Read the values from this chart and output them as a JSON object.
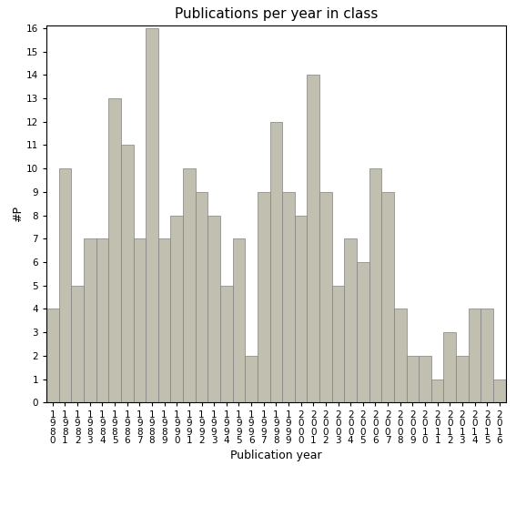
{
  "title": "Publications per year in class",
  "xlabel": "Publication year",
  "ylabel": "#P",
  "years": [
    "1980",
    "1981",
    "1982",
    "1983",
    "1984",
    "1985",
    "1986",
    "1987",
    "1988",
    "1989",
    "1990",
    "1991",
    "1992",
    "1993",
    "1994",
    "1995",
    "1996",
    "1997",
    "1998",
    "1999",
    "2000",
    "2001",
    "2002",
    "2003",
    "2004",
    "2005",
    "2006",
    "2007",
    "2008",
    "2009",
    "2010",
    "2011",
    "2012",
    "2013",
    "2014",
    "2015",
    "2016"
  ],
  "values": [
    4,
    10,
    5,
    7,
    7,
    13,
    11,
    7,
    16,
    7,
    8,
    10,
    9,
    8,
    5,
    7,
    2,
    9,
    12,
    9,
    8,
    14,
    9,
    5,
    7,
    6,
    10,
    9,
    4,
    2,
    2,
    1,
    3,
    2,
    4,
    4,
    1
  ],
  "bar_color": "#c0bfb0",
  "bar_edge_color": "#808080",
  "ylim": [
    0,
    16
  ],
  "yticks": [
    0,
    1,
    2,
    3,
    4,
    5,
    6,
    7,
    8,
    9,
    10,
    11,
    12,
    13,
    14,
    15,
    16
  ],
  "title_fontsize": 11,
  "axis_label_fontsize": 9,
  "tick_fontsize": 7.5
}
